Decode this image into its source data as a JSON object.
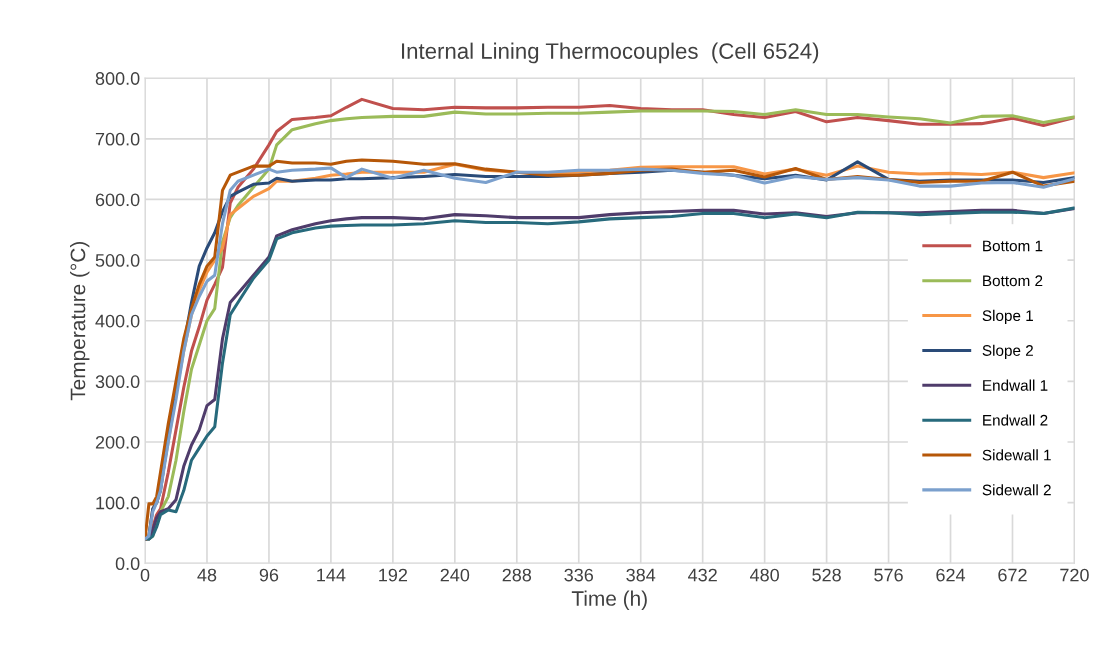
{
  "chart_data": {
    "type": "line",
    "title": "Internal Lining Thermocouples  (Cell 6524)",
    "xlabel": "Time (h)",
    "ylabel": "Temperature (°C)",
    "x": [
      0,
      3,
      6,
      9,
      12,
      18,
      24,
      30,
      36,
      42,
      48,
      54,
      60,
      66,
      72,
      84,
      96,
      102,
      114,
      132,
      144,
      156,
      168,
      192,
      216,
      240,
      264,
      288,
      312,
      336,
      360,
      384,
      408,
      432,
      456,
      480,
      504,
      528,
      552,
      576,
      600,
      624,
      648,
      672,
      696,
      720
    ],
    "series": [
      {
        "name": "Bottom 1",
        "color": "#c0504d",
        "values": [
          40,
          42,
          60,
          80,
          90,
          150,
          220,
          290,
          350,
          390,
          434,
          460,
          488,
          594,
          620,
          650,
          690,
          712,
          732,
          735,
          738,
          752,
          765,
          750,
          748,
          752,
          751,
          751,
          752,
          752,
          755,
          750,
          748,
          748,
          740,
          735,
          745,
          728,
          735,
          730,
          724,
          724,
          725,
          734,
          722,
          735
        ]
      },
      {
        "name": "Bottom 2",
        "color": "#9bbb59",
        "values": [
          40,
          40,
          45,
          70,
          85,
          110,
          170,
          250,
          320,
          360,
          400,
          420,
          530,
          570,
          590,
          620,
          650,
          690,
          715,
          725,
          730,
          733,
          735,
          737,
          737,
          744,
          741,
          741,
          742,
          742,
          744,
          746,
          746,
          746,
          745,
          740,
          748,
          740,
          740,
          736,
          733,
          726,
          737,
          738,
          727,
          736
        ]
      },
      {
        "name": "Slope 1",
        "color": "#f79646",
        "values": [
          40,
          45,
          90,
          100,
          130,
          200,
          280,
          350,
          410,
          450,
          480,
          500,
          520,
          575,
          585,
          605,
          618,
          630,
          630,
          635,
          640,
          642,
          645,
          645,
          645,
          658,
          648,
          645,
          643,
          645,
          648,
          653,
          654,
          654,
          654,
          642,
          650,
          640,
          655,
          645,
          642,
          643,
          641,
          645,
          636,
          644
        ]
      },
      {
        "name": "Slope 2",
        "color": "#2a4b78",
        "values": [
          40,
          45,
          90,
          100,
          120,
          210,
          280,
          360,
          430,
          490,
          520,
          545,
          580,
          605,
          612,
          625,
          627,
          635,
          630,
          632,
          632,
          634,
          634,
          636,
          638,
          641,
          638,
          638,
          638,
          640,
          643,
          645,
          648,
          645,
          640,
          634,
          640,
          632,
          662,
          633,
          630,
          632,
          632,
          632,
          628,
          636
        ]
      },
      {
        "name": "Endwall 1",
        "color": "#4f3c6b",
        "values": [
          40,
          40,
          55,
          75,
          85,
          90,
          105,
          160,
          195,
          220,
          260,
          270,
          370,
          430,
          445,
          475,
          505,
          540,
          550,
          560,
          565,
          568,
          570,
          570,
          568,
          575,
          573,
          570,
          570,
          570,
          575,
          578,
          580,
          582,
          582,
          576,
          578,
          572,
          578,
          578,
          578,
          580,
          582,
          582,
          577,
          585
        ]
      },
      {
        "name": "Endwall 2",
        "color": "#276a7c",
        "values": [
          40,
          40,
          45,
          60,
          80,
          88,
          85,
          120,
          170,
          190,
          210,
          225,
          330,
          410,
          430,
          470,
          500,
          535,
          545,
          553,
          556,
          557,
          558,
          558,
          560,
          565,
          562,
          562,
          560,
          563,
          568,
          570,
          572,
          577,
          577,
          570,
          576,
          570,
          579,
          578,
          575,
          577,
          579,
          579,
          577,
          586
        ]
      },
      {
        "name": "Sidewall 1",
        "color": "#b65708",
        "values": [
          40,
          98,
          98,
          110,
          150,
          230,
          300,
          370,
          420,
          460,
          490,
          505,
          615,
          640,
          645,
          655,
          655,
          663,
          660,
          660,
          658,
          663,
          665,
          663,
          658,
          659,
          650,
          645,
          640,
          640,
          643,
          648,
          650,
          645,
          648,
          637,
          651,
          633,
          638,
          633,
          628,
          630,
          630,
          645,
          622,
          630
        ]
      },
      {
        "name": "Sidewall 2",
        "color": "#7ba0cd",
        "values": [
          40,
          45,
          85,
          100,
          120,
          200,
          270,
          350,
          410,
          440,
          465,
          475,
          560,
          615,
          630,
          640,
          650,
          645,
          648,
          650,
          652,
          636,
          650,
          635,
          648,
          635,
          628,
          645,
          645,
          648,
          648,
          650,
          648,
          643,
          640,
          627,
          638,
          633,
          636,
          632,
          622,
          622,
          627,
          628,
          620,
          634
        ]
      }
    ],
    "xlim": [
      0,
      720
    ],
    "xticks": [
      0,
      48,
      96,
      144,
      192,
      240,
      288,
      336,
      384,
      432,
      480,
      528,
      576,
      624,
      672,
      720
    ],
    "ylim": [
      0,
      800
    ],
    "yticks": [
      {
        "value": 0,
        "label": "0.0"
      },
      {
        "value": 100,
        "label": "100.0"
      },
      {
        "value": 200,
        "label": "200.0"
      },
      {
        "value": 300,
        "label": "300.0"
      },
      {
        "value": 400,
        "label": "400.0"
      },
      {
        "value": 500,
        "label": "500.0"
      },
      {
        "value": 600,
        "label": "600.0"
      },
      {
        "value": 700,
        "label": "700.0"
      },
      {
        "value": 800,
        "label": "800.0"
      }
    ],
    "grid": true,
    "legend": "right",
    "marker": "none",
    "line_style": "solid"
  }
}
